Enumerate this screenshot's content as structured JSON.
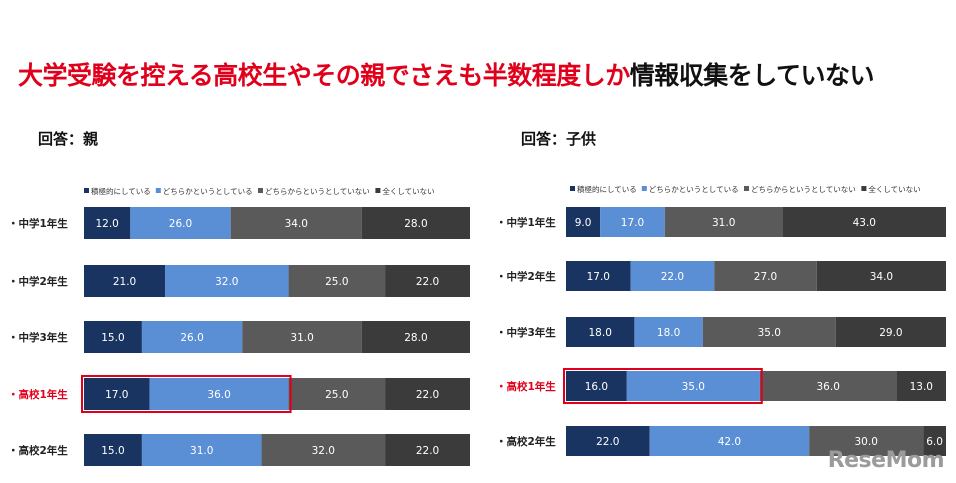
{
  "headline": {
    "red": "大学受験を控える高校生やその親でさえも半数程度しか",
    "dark": "情報収集をしていない"
  },
  "colors": {
    "s1": "#1a3461",
    "s2": "#5a8ed5",
    "s3": "#5a5a5a",
    "s4": "#3b3b3b",
    "highlight": "#e0001b",
    "grade_highlight": "#e0001b"
  },
  "watermark": "ReseMom",
  "chart_data": [
    {
      "type": "bar",
      "stacked": true,
      "orientation": "horizontal",
      "title": "回答：親",
      "legend": [
        "積極的にしている",
        "どちらかというとしている",
        "どちらからというとしていない",
        "全くしていない"
      ],
      "categories": [
        "・中学1年生",
        "・中学2年生",
        "・中学3年生",
        "・高校1年生",
        "・高校2年生"
      ],
      "highlight_index": 3,
      "highlight_series": 2,
      "series": [
        {
          "name": "積極的にしている",
          "values": [
            12.0,
            21.0,
            15.0,
            17.0,
            15.0
          ]
        },
        {
          "name": "どちらかというとしている",
          "values": [
            26.0,
            32.0,
            26.0,
            36.0,
            31.0
          ]
        },
        {
          "name": "どちらからというとしていない",
          "values": [
            34.0,
            25.0,
            31.0,
            25.0,
            32.0
          ]
        },
        {
          "name": "全くしていない",
          "values": [
            28.0,
            22.0,
            28.0,
            22.0,
            22.0
          ]
        }
      ],
      "labels": [
        [
          "12.0",
          "26.0",
          "34.0",
          "28.0"
        ],
        [
          "21.0",
          "32.0",
          "25.0",
          "22.0"
        ],
        [
          "15.0",
          "26.0",
          "31.0",
          "28.0"
        ],
        [
          "17.0",
          "36.0",
          "25.0",
          "22.0"
        ],
        [
          "15.0",
          "31.0",
          "32.0",
          "22.0"
        ]
      ],
      "xlim": [
        0,
        100
      ]
    },
    {
      "type": "bar",
      "stacked": true,
      "orientation": "horizontal",
      "title": "回答：子供",
      "legend": [
        "積極的にしている",
        "どちらかというとしている",
        "どちらからというとしていない",
        "全くしていない"
      ],
      "categories": [
        "・中学1年生",
        "・中学2年生",
        "・中学3年生",
        "・高校1年生",
        "・高校2年生"
      ],
      "highlight_index": 3,
      "highlight_series": 2,
      "series": [
        {
          "name": "積極的にしている",
          "values": [
            9.0,
            17.0,
            18.0,
            16.0,
            22.0
          ]
        },
        {
          "name": "どちらかというとしている",
          "values": [
            17.0,
            22.0,
            18.0,
            35.0,
            42.0
          ]
        },
        {
          "name": "どちらからというとしていない",
          "values": [
            31.0,
            27.0,
            35.0,
            36.0,
            30.0
          ]
        },
        {
          "name": "全くしていない",
          "values": [
            43.0,
            34.0,
            29.0,
            13.0,
            6.0
          ]
        }
      ],
      "labels": [
        [
          "9.0",
          "17.0",
          "31.0",
          "43.0"
        ],
        [
          "17.0",
          "22.0",
          "27.0",
          "34.0"
        ],
        [
          "18.0",
          "18.0",
          "35.0",
          "29.0"
        ],
        [
          "16.0",
          "35.0",
          "36.0",
          "13.0"
        ],
        [
          "22.0",
          "42.0",
          "30.0",
          "6.0"
        ]
      ],
      "xlim": [
        0,
        100
      ]
    }
  ]
}
